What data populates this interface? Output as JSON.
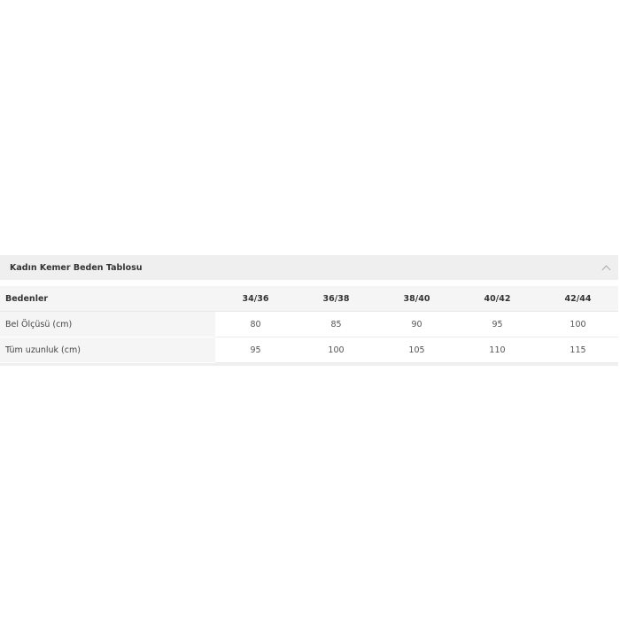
{
  "accordion": {
    "title": "Kadın Kemer Beden Tablosu",
    "expanded": true,
    "toggle_icon": "chevron-up-icon"
  },
  "table": {
    "headers": [
      "Bedenler",
      "34/36",
      "36/38",
      "38/40",
      "40/42",
      "42/44"
    ],
    "rows": [
      {
        "label": "Bel Ölçüsü (cm)",
        "values": [
          "80",
          "85",
          "90",
          "95",
          "100"
        ]
      },
      {
        "label": "Tüm uzunluk (cm)",
        "values": [
          "95",
          "100",
          "105",
          "110",
          "115"
        ]
      }
    ]
  }
}
